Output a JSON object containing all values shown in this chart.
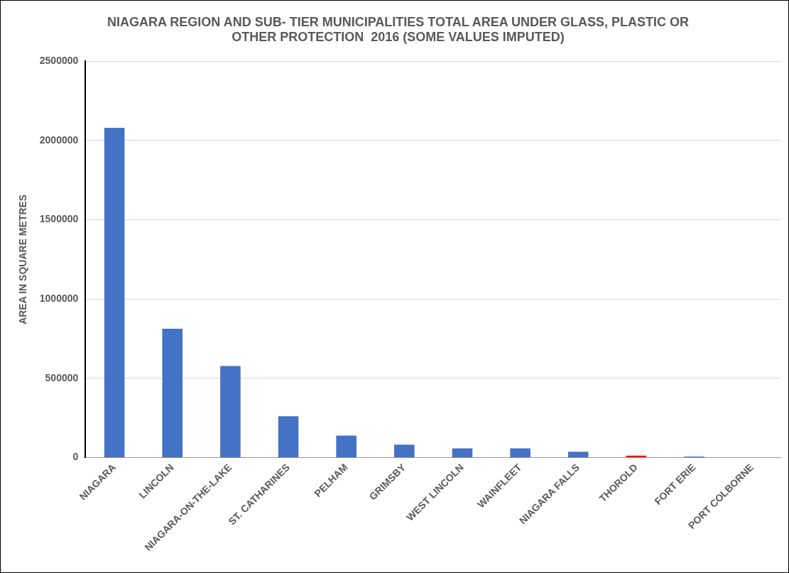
{
  "chart_data": {
    "type": "bar",
    "title": "NIAGARA REGION AND SUB- TIER MUNICIPALITIES TOTAL AREA UNDER GLASS, PLASTIC OR OTHER PROTECTION  2016 (SOME VALUES IMPUTED)",
    "ylabel": "AREA IN SQUARE METRES",
    "categories": [
      "NIAGARA",
      "LINCOLN",
      "NIAGARA-ON-THE-LAKE",
      "ST. CATHARINES",
      "PELHAM",
      "GRIMSBY",
      "WEST LINCOLN",
      "WAINFLEET",
      "NIAGARA FALLS",
      "THOROLD",
      "FORT ERIE",
      "PORT COLBORNE"
    ],
    "values": [
      2080000,
      812000,
      577000,
      261000,
      139000,
      81000,
      58000,
      58000,
      37000,
      12000,
      7000,
      0
    ],
    "colors": [
      "#4472c4",
      "#4472c4",
      "#4472c4",
      "#4472c4",
      "#4472c4",
      "#4472c4",
      "#4472c4",
      "#4472c4",
      "#4472c4",
      "#ff0000",
      "#4472c4",
      "#4472c4"
    ],
    "ylim": [
      0,
      2500000
    ],
    "yticks": [
      0,
      500000,
      1000000,
      1500000,
      2000000,
      2500000
    ],
    "grid": "y"
  }
}
